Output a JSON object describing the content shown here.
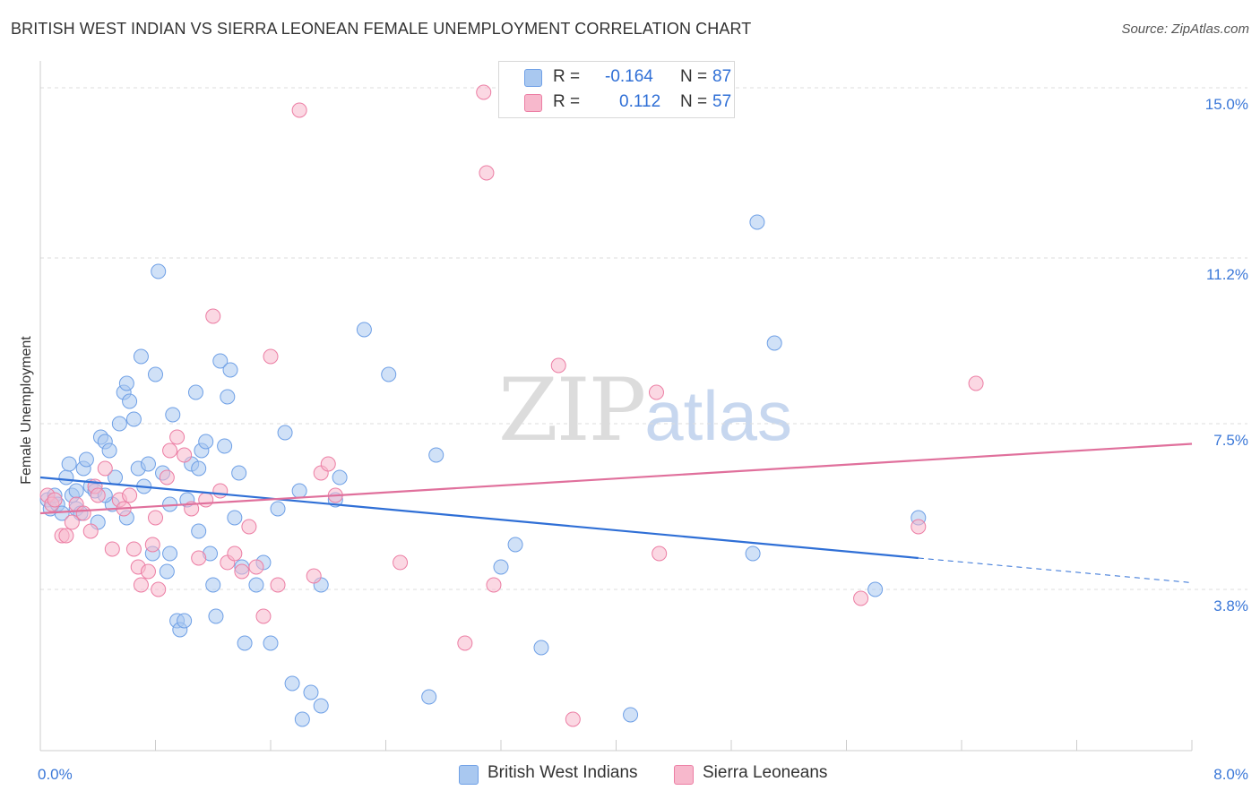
{
  "header": {
    "title": "BRITISH WEST INDIAN VS SIERRA LEONEAN FEMALE UNEMPLOYMENT CORRELATION CHART",
    "source": "Source: ZipAtlas.com"
  },
  "watermark": {
    "zip": "ZIP",
    "atlas": "atlas"
  },
  "legend": {
    "rows": [
      {
        "r_label": "R =",
        "r_value": "-0.164",
        "n_label": "N =",
        "n_value": "87",
        "color": "#a9c8f0"
      },
      {
        "r_label": "R =",
        "r_value": "0.112",
        "n_label": "N =",
        "n_value": "57",
        "color": "#f7b8cc"
      }
    ]
  },
  "bottom_legend": {
    "items": [
      {
        "label": "British West Indians",
        "color": "#a9c8f0"
      },
      {
        "label": "Sierra Leoneans",
        "color": "#f7b8cc"
      }
    ]
  },
  "chart_data": {
    "type": "scatter",
    "title": "BRITISH WEST INDIAN VS SIERRA LEONEAN FEMALE UNEMPLOYMENT CORRELATION CHART",
    "xlabel": "",
    "ylabel": "Female Unemployment",
    "xlim": [
      0,
      8
    ],
    "ylim": [
      0.2,
      15.6
    ],
    "x_tick_labels": [
      {
        "value": 0,
        "label": "0.0%"
      },
      {
        "value": 8,
        "label": "8.0%"
      }
    ],
    "y_tick_labels": [
      {
        "value": 3.8,
        "label": "3.8%"
      },
      {
        "value": 7.5,
        "label": "7.5%"
      },
      {
        "value": 11.2,
        "label": "11.2%"
      },
      {
        "value": 15.0,
        "label": "15.0%"
      }
    ],
    "y_gridlines": [
      3.8,
      7.5,
      11.2,
      15.0
    ],
    "grid": true,
    "legend_placement": "top-center",
    "series": [
      {
        "name": "British West Indians",
        "color": "#6fa0e6",
        "fill": "#a9c8f0",
        "trend": {
          "x0": 0.0,
          "y0": 6.3,
          "x1": 6.1,
          "y1": 4.5,
          "dash_to_x": 8.0,
          "dash_to_y": 3.95,
          "color": "#2f6fd6"
        },
        "points": [
          [
            0.05,
            5.8
          ],
          [
            0.07,
            5.6
          ],
          [
            0.1,
            5.9
          ],
          [
            0.12,
            5.7
          ],
          [
            0.15,
            5.5
          ],
          [
            0.18,
            6.3
          ],
          [
            0.2,
            6.6
          ],
          [
            0.22,
            5.9
          ],
          [
            0.25,
            5.6
          ],
          [
            0.28,
            5.5
          ],
          [
            0.3,
            6.5
          ],
          [
            0.32,
            6.7
          ],
          [
            0.35,
            6.1
          ],
          [
            0.38,
            6.0
          ],
          [
            0.4,
            5.3
          ],
          [
            0.42,
            7.2
          ],
          [
            0.45,
            7.1
          ],
          [
            0.48,
            6.9
          ],
          [
            0.5,
            5.7
          ],
          [
            0.52,
            6.3
          ],
          [
            0.55,
            7.5
          ],
          [
            0.58,
            8.2
          ],
          [
            0.6,
            8.4
          ],
          [
            0.62,
            8.0
          ],
          [
            0.65,
            7.6
          ],
          [
            0.68,
            6.5
          ],
          [
            0.7,
            9.0
          ],
          [
            0.72,
            6.1
          ],
          [
            0.75,
            6.6
          ],
          [
            0.78,
            4.6
          ],
          [
            0.8,
            8.6
          ],
          [
            0.82,
            10.9
          ],
          [
            0.85,
            6.4
          ],
          [
            0.88,
            4.2
          ],
          [
            0.9,
            5.7
          ],
          [
            0.92,
            7.7
          ],
          [
            0.95,
            3.1
          ],
          [
            0.97,
            2.9
          ],
          [
            1.0,
            3.1
          ],
          [
            1.02,
            5.8
          ],
          [
            1.05,
            6.6
          ],
          [
            1.08,
            8.2
          ],
          [
            1.1,
            6.5
          ],
          [
            1.12,
            6.9
          ],
          [
            1.15,
            7.1
          ],
          [
            1.18,
            4.6
          ],
          [
            1.2,
            3.9
          ],
          [
            1.22,
            3.2
          ],
          [
            1.25,
            8.9
          ],
          [
            1.28,
            7.0
          ],
          [
            1.3,
            8.1
          ],
          [
            1.32,
            8.7
          ],
          [
            1.35,
            5.4
          ],
          [
            1.38,
            6.4
          ],
          [
            1.4,
            4.3
          ],
          [
            1.42,
            2.6
          ],
          [
            1.5,
            3.9
          ],
          [
            1.55,
            4.4
          ],
          [
            1.6,
            2.6
          ],
          [
            1.65,
            5.6
          ],
          [
            1.7,
            7.3
          ],
          [
            1.75,
            1.7
          ],
          [
            1.8,
            6.0
          ],
          [
            1.82,
            0.9
          ],
          [
            1.88,
            1.5
          ],
          [
            1.95,
            1.2
          ],
          [
            1.95,
            3.9
          ],
          [
            2.05,
            5.8
          ],
          [
            2.08,
            6.3
          ],
          [
            2.25,
            9.6
          ],
          [
            2.42,
            8.6
          ],
          [
            2.7,
            1.4
          ],
          [
            2.75,
            6.8
          ],
          [
            3.2,
            4.3
          ],
          [
            3.3,
            4.8
          ],
          [
            3.48,
            2.5
          ],
          [
            4.1,
            1.0
          ],
          [
            4.95,
            4.6
          ],
          [
            4.98,
            12.0
          ],
          [
            5.1,
            9.3
          ],
          [
            5.8,
            3.8
          ],
          [
            6.1,
            5.4
          ],
          [
            0.6,
            5.4
          ],
          [
            0.25,
            6.0
          ],
          [
            0.9,
            4.6
          ],
          [
            1.1,
            5.1
          ],
          [
            0.45,
            5.9
          ]
        ]
      },
      {
        "name": "Sierra Leoneans",
        "color": "#ec7ea4",
        "fill": "#f7b8cc",
        "trend": {
          "x0": 0.0,
          "y0": 5.5,
          "x1": 8.0,
          "y1": 7.05,
          "color": "#e0709c"
        },
        "points": [
          [
            0.05,
            5.9
          ],
          [
            0.08,
            5.7
          ],
          [
            0.1,
            5.8
          ],
          [
            0.15,
            5.0
          ],
          [
            0.18,
            5.0
          ],
          [
            0.22,
            5.3
          ],
          [
            0.25,
            5.7
          ],
          [
            0.3,
            5.5
          ],
          [
            0.35,
            5.1
          ],
          [
            0.38,
            6.1
          ],
          [
            0.4,
            5.9
          ],
          [
            0.45,
            6.5
          ],
          [
            0.5,
            4.7
          ],
          [
            0.55,
            5.8
          ],
          [
            0.58,
            5.6
          ],
          [
            0.62,
            5.9
          ],
          [
            0.65,
            4.7
          ],
          [
            0.68,
            4.3
          ],
          [
            0.7,
            3.9
          ],
          [
            0.75,
            4.2
          ],
          [
            0.78,
            4.8
          ],
          [
            0.8,
            5.4
          ],
          [
            0.82,
            3.8
          ],
          [
            0.88,
            6.3
          ],
          [
            0.9,
            6.9
          ],
          [
            0.95,
            7.2
          ],
          [
            1.0,
            6.8
          ],
          [
            1.05,
            5.6
          ],
          [
            1.1,
            4.5
          ],
          [
            1.15,
            5.8
          ],
          [
            1.2,
            9.9
          ],
          [
            1.25,
            6.0
          ],
          [
            1.3,
            4.4
          ],
          [
            1.35,
            4.6
          ],
          [
            1.4,
            4.2
          ],
          [
            1.45,
            5.2
          ],
          [
            1.5,
            4.3
          ],
          [
            1.55,
            3.2
          ],
          [
            1.6,
            9.0
          ],
          [
            1.65,
            3.9
          ],
          [
            1.9,
            4.1
          ],
          [
            1.95,
            6.4
          ],
          [
            2.0,
            6.6
          ],
          [
            2.05,
            5.9
          ],
          [
            2.5,
            4.4
          ],
          [
            2.95,
            2.6
          ],
          [
            3.08,
            14.9
          ],
          [
            3.1,
            13.1
          ],
          [
            3.15,
            3.9
          ],
          [
            3.6,
            8.8
          ],
          [
            3.7,
            0.9
          ],
          [
            4.28,
            8.2
          ],
          [
            4.3,
            4.6
          ],
          [
            5.7,
            3.6
          ],
          [
            6.1,
            5.2
          ],
          [
            6.5,
            8.4
          ],
          [
            1.8,
            14.5
          ]
        ]
      }
    ]
  }
}
